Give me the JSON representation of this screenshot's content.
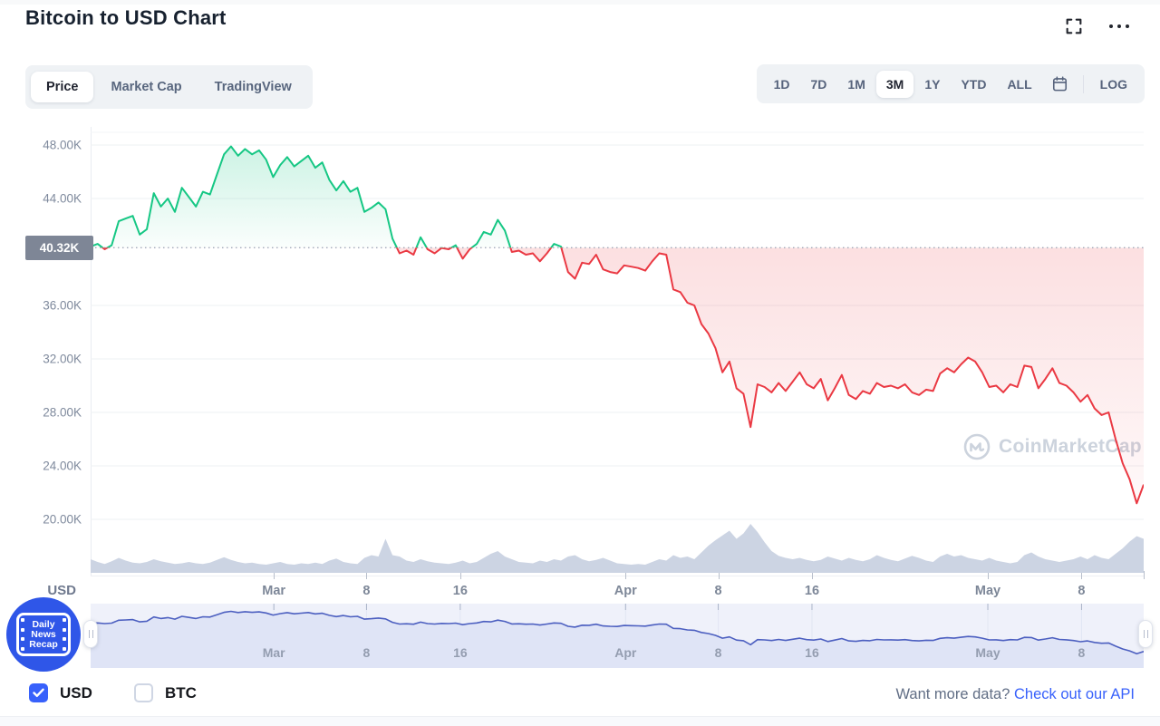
{
  "header": {
    "title": "Bitcoin to USD Chart",
    "fullscreen_icon": "fullscreen",
    "more_icon": "more-options"
  },
  "chart_tabs": {
    "items": [
      "Price",
      "Market Cap",
      "TradingView"
    ],
    "active": "Price"
  },
  "range_toolbar": {
    "ranges": [
      "1D",
      "7D",
      "1M",
      "3M",
      "1Y",
      "YTD",
      "ALL"
    ],
    "active": "3M",
    "log_label": "LOG"
  },
  "axis": {
    "unit_label": "USD",
    "current_price_label": "40.32K"
  },
  "watermark": {
    "text": "CoinMarketCap"
  },
  "news_badge": {
    "lines": [
      "Daily",
      "News",
      "Recap"
    ]
  },
  "footer": {
    "currencies": [
      {
        "label": "USD",
        "checked": true
      },
      {
        "label": "BTC",
        "checked": false
      }
    ],
    "promo_text": "Want more data?",
    "promo_link": "Check out our API"
  },
  "chart_data": {
    "type": "line",
    "title": "Bitcoin to USD Chart",
    "currency": "USD",
    "active_range": "3M",
    "current_price_usd_k": 40.32,
    "current_price_label": "40.32K",
    "ylim_usd_k": [
      16,
      49.4
    ],
    "grid": "horizontal",
    "y_ticks": [
      {
        "label": "48.00K",
        "value": 48
      },
      {
        "label": "44.00K",
        "value": 44
      },
      {
        "label": "36.00K",
        "value": 36
      },
      {
        "label": "32.00K",
        "value": 32
      },
      {
        "label": "28.00K",
        "value": 28
      },
      {
        "label": "24.00K",
        "value": 24
      },
      {
        "label": "20.00K",
        "value": 20
      }
    ],
    "x_ticks": [
      {
        "label": "Mar",
        "pos": 0.174
      },
      {
        "label": "8",
        "pos": 0.262
      },
      {
        "label": "16",
        "pos": 0.351
      },
      {
        "label": "Apr",
        "pos": 0.508
      },
      {
        "label": "8",
        "pos": 0.596
      },
      {
        "label": "16",
        "pos": 0.685
      },
      {
        "label": "May",
        "pos": 0.852
      },
      {
        "label": "8",
        "pos": 0.941
      }
    ],
    "colors": {
      "up": "#16c784",
      "down": "#ea3943",
      "volume": "#ccd4e3",
      "baseline_dotted": "#98a1b3",
      "nav_line": "#4c5fc0",
      "nav_fill": "#dfe4f6",
      "accent_blue": "#3861fb"
    },
    "series": [
      {
        "name": "BTC price (USD, thousands)",
        "values": [
          40.4,
          40.6,
          40.2,
          40.5,
          42.3,
          42.5,
          42.7,
          41.3,
          41.7,
          44.4,
          43.4,
          44.0,
          43.0,
          44.8,
          44.1,
          43.4,
          44.5,
          44.3,
          45.8,
          47.3,
          47.9,
          47.2,
          47.7,
          47.3,
          47.6,
          46.9,
          45.6,
          46.5,
          47.1,
          46.4,
          46.8,
          47.2,
          46.3,
          46.7,
          45.4,
          44.6,
          45.3,
          44.5,
          44.8,
          43.0,
          43.3,
          43.7,
          43.2,
          41.0,
          39.9,
          40.1,
          39.8,
          41.1,
          40.2,
          39.9,
          40.3,
          40.2,
          40.5,
          39.5,
          40.2,
          40.6,
          41.5,
          41.3,
          42.4,
          41.6,
          40.0,
          40.1,
          39.8,
          39.9,
          39.3,
          39.9,
          40.6,
          40.4,
          38.5,
          38.0,
          39.2,
          39.1,
          39.8,
          38.7,
          38.5,
          38.4,
          39.0,
          38.9,
          38.8,
          38.6,
          39.3,
          39.9,
          39.8,
          37.2,
          37.0,
          36.2,
          36.0,
          34.6,
          33.9,
          32.8,
          31.0,
          31.8,
          29.8,
          29.4,
          26.9,
          30.1,
          29.9,
          29.5,
          30.2,
          29.6,
          30.3,
          31.0,
          30.1,
          29.8,
          30.5,
          28.9,
          29.8,
          30.8,
          29.3,
          29.0,
          29.6,
          29.4,
          30.2,
          29.9,
          30.0,
          29.8,
          30.1,
          29.5,
          29.3,
          29.7,
          29.6,
          30.9,
          31.3,
          31.0,
          31.6,
          32.1,
          31.8,
          31.0,
          29.9,
          30.0,
          29.5,
          30.1,
          29.9,
          31.5,
          31.4,
          29.8,
          30.5,
          31.3,
          30.2,
          30.0,
          29.5,
          28.8,
          29.3,
          28.3,
          27.8,
          28.0,
          26.0,
          24.2,
          23.0,
          21.2,
          22.6
        ]
      },
      {
        "name": "Volume (relative %)",
        "values": [
          20,
          16,
          13,
          17,
          22,
          18,
          15,
          14,
          16,
          20,
          17,
          15,
          13,
          14,
          16,
          14,
          13,
          15,
          19,
          23,
          19,
          16,
          14,
          15,
          13,
          12,
          14,
          16,
          13,
          12,
          14,
          13,
          15,
          13,
          18,
          21,
          16,
          14,
          13,
          22,
          26,
          24,
          50,
          26,
          24,
          18,
          16,
          20,
          17,
          15,
          14,
          13,
          15,
          18,
          14,
          16,
          22,
          28,
          32,
          24,
          20,
          16,
          15,
          14,
          18,
          16,
          20,
          18,
          24,
          26,
          20,
          17,
          19,
          22,
          18,
          14,
          13,
          12,
          13,
          12,
          16,
          20,
          18,
          26,
          22,
          24,
          20,
          30,
          40,
          48,
          55,
          62,
          50,
          58,
          72,
          60,
          45,
          32,
          25,
          22,
          20,
          22,
          19,
          17,
          19,
          24,
          21,
          18,
          22,
          19,
          17,
          20,
          26,
          22,
          19,
          17,
          21,
          25,
          22,
          18,
          16,
          24,
          28,
          24,
          26,
          22,
          20,
          18,
          22,
          18,
          16,
          14,
          16,
          26,
          30,
          24,
          20,
          18,
          16,
          18,
          20,
          24,
          20,
          26,
          22,
          20,
          28,
          36,
          46,
          54,
          50
        ]
      }
    ]
  }
}
